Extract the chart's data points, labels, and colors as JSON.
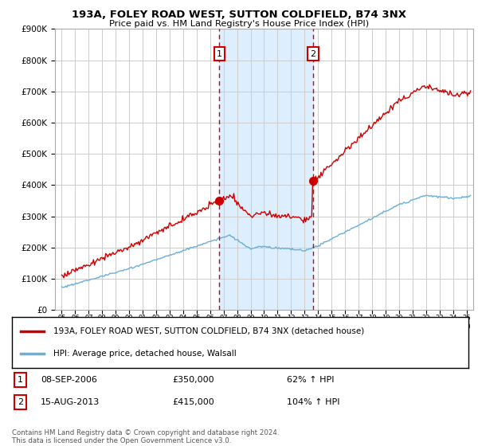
{
  "title_line1": "193A, FOLEY ROAD WEST, SUTTON COLDFIELD, B74 3NX",
  "title_line2": "Price paid vs. HM Land Registry's House Price Index (HPI)",
  "legend_line1": "193A, FOLEY ROAD WEST, SUTTON COLDFIELD, B74 3NX (detached house)",
  "legend_line2": "HPI: Average price, detached house, Walsall",
  "annotation1_label": "1",
  "annotation1_date": "08-SEP-2006",
  "annotation1_price": "£350,000",
  "annotation1_hpi": "62% ↑ HPI",
  "annotation2_label": "2",
  "annotation2_date": "15-AUG-2013",
  "annotation2_price": "£415,000",
  "annotation2_hpi": "104% ↑ HPI",
  "footer": "Contains HM Land Registry data © Crown copyright and database right 2024.\nThis data is licensed under the Open Government Licence v3.0.",
  "sale1_date_num": 2006.69,
  "sale2_date_num": 2013.62,
  "sale1_price": 350000,
  "sale2_price": 415000,
  "hpi_color": "#6baed6",
  "price_color": "#cc0000",
  "shade_color": "#ddeeff",
  "dashed_color": "#cc0000",
  "background_color": "#ffffff",
  "grid_color": "#cccccc",
  "ylim": [
    0,
    900000
  ],
  "xlim_start": 1994.5,
  "xlim_end": 2025.5
}
